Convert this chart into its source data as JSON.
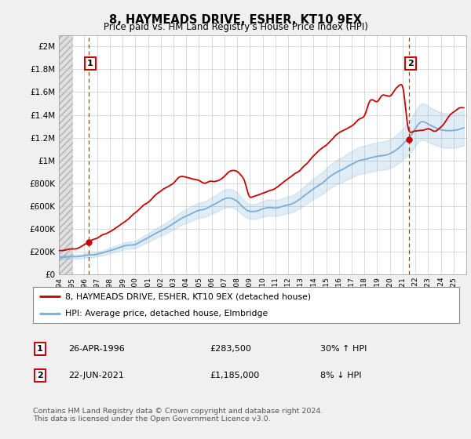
{
  "title": "8, HAYMEADS DRIVE, ESHER, KT10 9EX",
  "subtitle": "Price paid vs. HM Land Registry's House Price Index (HPI)",
  "ylabel_ticks": [
    "£0",
    "£200K",
    "£400K",
    "£600K",
    "£800K",
    "£1M",
    "£1.2M",
    "£1.4M",
    "£1.6M",
    "£1.8M",
    "£2M"
  ],
  "ytick_values": [
    0,
    200000,
    400000,
    600000,
    800000,
    1000000,
    1200000,
    1400000,
    1600000,
    1800000,
    2000000
  ],
  "ylim": [
    0,
    2100000
  ],
  "xlim_start": 1994.0,
  "xlim_end": 2026.0,
  "sale1_year": 1996.32,
  "sale1_price": 283500,
  "sale2_year": 2021.47,
  "sale2_price": 1185000,
  "red_line_color": "#cc0000",
  "blue_line_color": "#7aaed6",
  "dashed_line_color": "#cc0000",
  "grid_color": "#cccccc",
  "plot_bg_color": "#ffffff",
  "legend_line1": "8, HAYMEADS DRIVE, ESHER, KT10 9EX (detached house)",
  "legend_line2": "HPI: Average price, detached house, Elmbridge",
  "note1_num": "1",
  "note1_date": "26-APR-1996",
  "note1_price": "£283,500",
  "note1_hpi": "30% ↑ HPI",
  "note2_num": "2",
  "note2_date": "22-JUN-2021",
  "note2_price": "£1,185,000",
  "note2_hpi": "8% ↓ HPI",
  "footer": "Contains HM Land Registry data © Crown copyright and database right 2024.\nThis data is licensed under the Open Government Licence v3.0.",
  "hpi_keypoints": [
    [
      1994.0,
      150000
    ],
    [
      1996.0,
      175000
    ],
    [
      1998.0,
      210000
    ],
    [
      2000.0,
      280000
    ],
    [
      2002.0,
      400000
    ],
    [
      2004.0,
      530000
    ],
    [
      2006.0,
      620000
    ],
    [
      2007.5,
      700000
    ],
    [
      2009.0,
      590000
    ],
    [
      2010.0,
      620000
    ],
    [
      2012.0,
      670000
    ],
    [
      2014.0,
      820000
    ],
    [
      2016.0,
      1000000
    ],
    [
      2017.0,
      1050000
    ],
    [
      2018.0,
      1080000
    ],
    [
      2019.0,
      1100000
    ],
    [
      2020.0,
      1120000
    ],
    [
      2021.5,
      1280000
    ],
    [
      2022.5,
      1420000
    ],
    [
      2023.5,
      1380000
    ],
    [
      2024.5,
      1350000
    ],
    [
      2025.5,
      1370000
    ]
  ],
  "red_keypoints": [
    [
      1994.0,
      210000
    ],
    [
      1995.0,
      235000
    ],
    [
      1996.32,
      283500
    ],
    [
      1997.0,
      330000
    ],
    [
      1998.5,
      420000
    ],
    [
      2000.0,
      530000
    ],
    [
      2001.5,
      640000
    ],
    [
      2003.0,
      750000
    ],
    [
      2004.0,
      810000
    ],
    [
      2005.0,
      790000
    ],
    [
      2006.5,
      790000
    ],
    [
      2007.5,
      870000
    ],
    [
      2008.5,
      820000
    ],
    [
      2009.0,
      650000
    ],
    [
      2010.0,
      690000
    ],
    [
      2011.0,
      730000
    ],
    [
      2012.0,
      790000
    ],
    [
      2013.0,
      870000
    ],
    [
      2014.0,
      1000000
    ],
    [
      2015.0,
      1100000
    ],
    [
      2016.0,
      1200000
    ],
    [
      2017.0,
      1280000
    ],
    [
      2017.5,
      1350000
    ],
    [
      2018.0,
      1380000
    ],
    [
      2018.5,
      1520000
    ],
    [
      2019.0,
      1480000
    ],
    [
      2019.5,
      1550000
    ],
    [
      2020.0,
      1530000
    ],
    [
      2020.5,
      1580000
    ],
    [
      2021.0,
      1620000
    ],
    [
      2021.47,
      1185000
    ],
    [
      2022.0,
      1200000
    ],
    [
      2022.5,
      1220000
    ],
    [
      2023.0,
      1250000
    ],
    [
      2023.5,
      1230000
    ],
    [
      2024.0,
      1270000
    ],
    [
      2024.5,
      1350000
    ],
    [
      2025.0,
      1400000
    ],
    [
      2025.5,
      1430000
    ]
  ]
}
